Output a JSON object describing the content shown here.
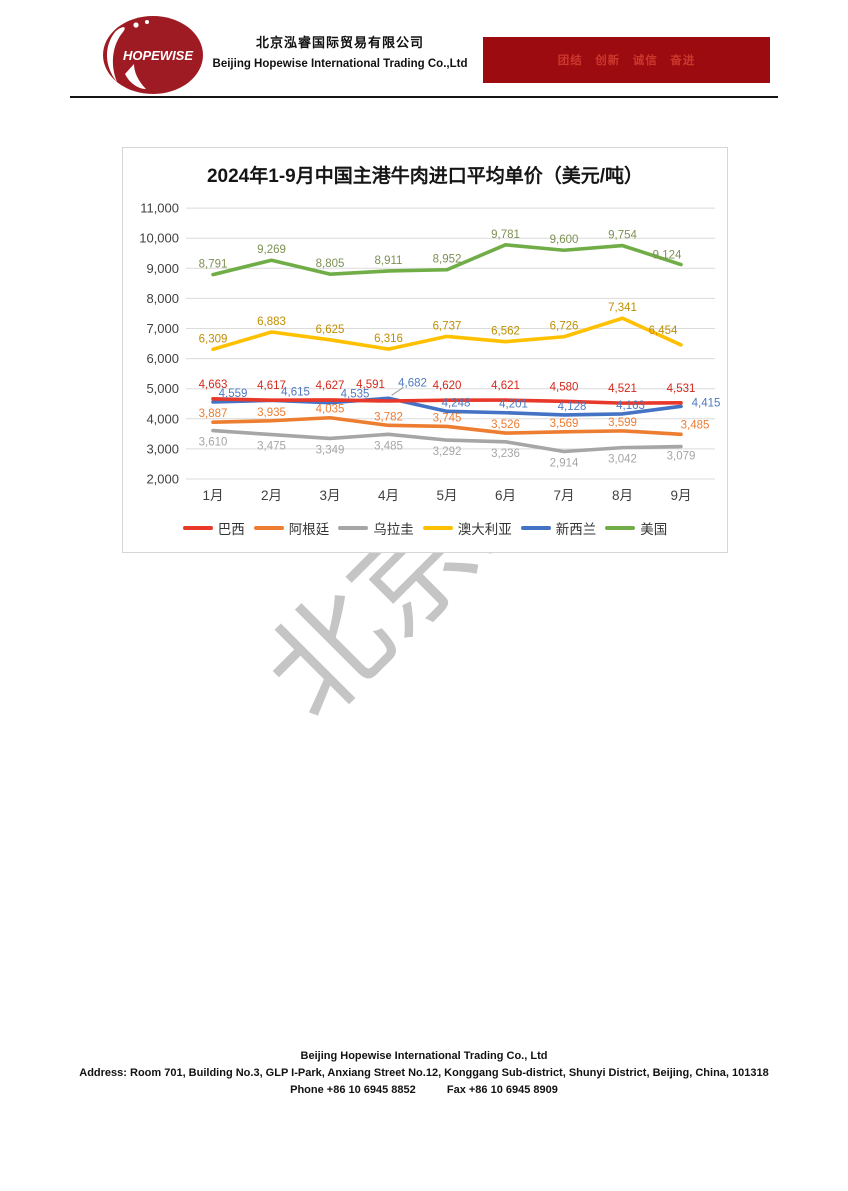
{
  "header": {
    "logo_text": "HOPEWISE",
    "company_zh": "北京泓睿国际贸易有限公司",
    "company_en": "Beijing Hopewise International Trading Co.,Ltd",
    "banner_slogan": "团结　创新　诚信　奋进"
  },
  "colors": {
    "brand_dark_red": "#9c0b10",
    "banner_text_red": "#cc372c"
  },
  "watermark": "北京泓睿",
  "chart_data": {
    "type": "line",
    "title": "2024年1-9月中国主港牛肉进口平均单价（美元/吨）",
    "categories": [
      "1月",
      "2月",
      "3月",
      "4月",
      "5月",
      "6月",
      "7月",
      "8月",
      "9月"
    ],
    "series": [
      {
        "name": "巴西",
        "color": "#e8382a",
        "label_color": "#d6281a",
        "values": [
          4663,
          4617,
          4627,
          4591,
          4620,
          4621,
          4580,
          4521,
          4531
        ]
      },
      {
        "name": "阿根廷",
        "color": "#ed7d31",
        "label_color": "#ed7d31",
        "values": [
          3887,
          3935,
          4035,
          3782,
          3745,
          3526,
          3569,
          3599,
          3485
        ]
      },
      {
        "name": "乌拉圭",
        "color": "#a6a6a6",
        "label_color": "#a6a6a6",
        "values": [
          3610,
          3475,
          3349,
          3485,
          3292,
          3236,
          2914,
          3042,
          3079
        ]
      },
      {
        "name": "澳大利亚",
        "color": "#ffc000",
        "label_color": "#bf8f00",
        "values": [
          6309,
          6883,
          6625,
          6316,
          6737,
          6562,
          6726,
          7341,
          6454
        ]
      },
      {
        "name": "新西兰",
        "color": "#4472c4",
        "label_color": "#4e79c0",
        "values": [
          4559,
          4615,
          4535,
          4682,
          4248,
          4201,
          4128,
          4163,
          4415
        ]
      },
      {
        "name": "美国",
        "color": "#70ad47",
        "label_color": "#7d9153",
        "values": [
          8791,
          9269,
          8805,
          8911,
          8952,
          9781,
          9600,
          9754,
          9124
        ]
      }
    ],
    "ylim": [
      2000,
      11000
    ],
    "ytick_step": 1000,
    "grid": true,
    "legend_position": "bottom"
  },
  "footer": {
    "company": "Beijing Hopewise International Trading Co., Ltd",
    "address": "Address: Room 701, Building No.3, GLP I-Park, Anxiang Street No.12, Konggang Sub-district, Shunyi District, Beijing, China, 101318",
    "phone": "Phone +86 10 6945 8852",
    "fax": "Fax +86 10 6945 8909"
  }
}
